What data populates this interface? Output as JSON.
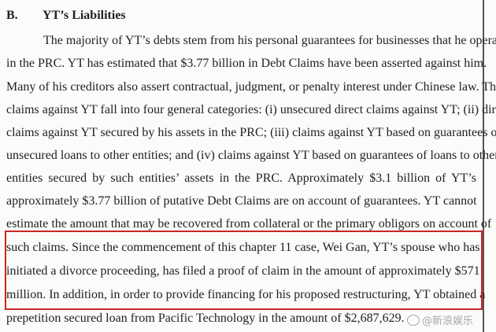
{
  "section": {
    "number": "B.",
    "title": "YT’s Liabilities"
  },
  "lines": [
    "The majority of YT’s debts stem from his personal guarantees for businesses that he operated",
    "in the PRC. YT has estimated that $3.77 billion in Debt Claims have been asserted against him.",
    "Many of his creditors also assert contractual, judgment, or penalty interest under Chinese law. The",
    "claims against YT fall into four general categories: (i) unsecured direct claims against YT; (ii) direct",
    "claims against YT secured by his assets in the PRC; (iii) claims against YT based on guarantees of",
    "unsecured loans to other entities; and (iv) claims against YT based on guarantees of loans to other",
    "entities secured by such entities’ assets in the PRC. Approximately $3.1 billion of YT’s",
    "approximately $3.77 billion of putative Debt Claims are on account of guarantees. YT cannot",
    "estimate the amount that may be recovered from collateral or the primary obligors on account of",
    "such claims. Since the commencement of this chapter 11 case, Wei Gan, YT’s spouse who has",
    "initiated a divorce proceeding, has filed a proof of claim in the amount of approximately $571",
    "million. In addition, in order to provide financing for his proposed restructuring, YT obtained a",
    "prepetition secured loan from Pacific Technology in the amount of $2,687,629."
  ],
  "highlight_color": "#c8252a",
  "watermark": "@新浪娱乐"
}
